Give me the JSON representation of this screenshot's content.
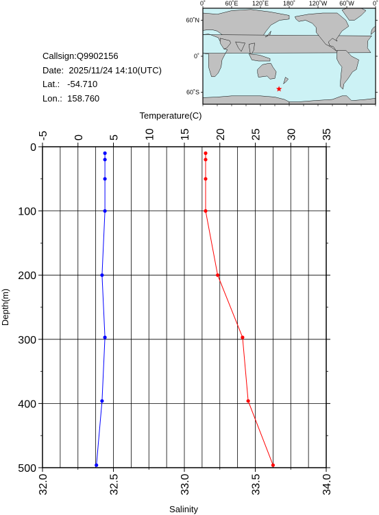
{
  "station": {
    "callsign_label": "Callsign:",
    "callsign": "Q9902156",
    "date_label": "Date:",
    "date": "2025/11/24 14:10(UTC)",
    "lat_label": "Lat.:",
    "lat": "-54.710",
    "lon_label": "Lon.:",
    "lon": "158.760"
  },
  "map": {
    "top_labels": [
      "0˚",
      "60˚E",
      "120˚E",
      "180˚",
      "120˚W",
      "60˚W",
      "0˚"
    ],
    "lat_labels": [
      "60˚N",
      "0˚",
      "60˚S"
    ],
    "ocean_color": "#ccf2f5",
    "land_color": "#c0c0c0",
    "marker_color": "#ff0000",
    "marker_lon": 158.76,
    "marker_lat": -54.71,
    "marker_icon": "star-icon"
  },
  "chart_data": {
    "type": "line",
    "ylabel": "Depth(m)",
    "ylim": [
      500,
      0
    ],
    "yticks": [
      0,
      100,
      200,
      300,
      400,
      500
    ],
    "ytick_labels": [
      "0",
      "100",
      "200",
      "300",
      "400",
      "500"
    ],
    "grid": true,
    "top_axis": {
      "label": "Temperature(C)",
      "lim": [
        -5,
        35
      ],
      "ticks": [
        -5,
        0,
        5,
        10,
        15,
        20,
        25,
        30,
        35
      ],
      "tick_labels": [
        "-5",
        "0",
        "5",
        "10",
        "15",
        "20",
        "25",
        "30",
        "35"
      ]
    },
    "bottom_axis": {
      "label": "Salinity",
      "lim": [
        32.0,
        34.0
      ],
      "ticks": [
        32.0,
        32.5,
        33.0,
        33.5,
        34.0
      ],
      "tick_labels": [
        "32.0",
        "32.5",
        "33.0",
        "33.5",
        "34.0"
      ]
    },
    "series": [
      {
        "axis": "top",
        "color": "#ff0000",
        "points": [
          [
            18.0,
            10
          ],
          [
            18.0,
            20
          ],
          [
            18.0,
            50
          ],
          [
            18.0,
            100
          ],
          [
            19.7,
            200
          ],
          [
            23.2,
            297
          ],
          [
            24.0,
            396
          ],
          [
            27.5,
            496
          ]
        ]
      },
      {
        "axis": "bottom",
        "color": "#0000ff",
        "points": [
          [
            32.44,
            10
          ],
          [
            32.44,
            20
          ],
          [
            32.44,
            50
          ],
          [
            32.44,
            100
          ],
          [
            32.42,
            200
          ],
          [
            32.44,
            297
          ],
          [
            32.42,
            396
          ],
          [
            32.38,
            496
          ]
        ]
      }
    ]
  }
}
